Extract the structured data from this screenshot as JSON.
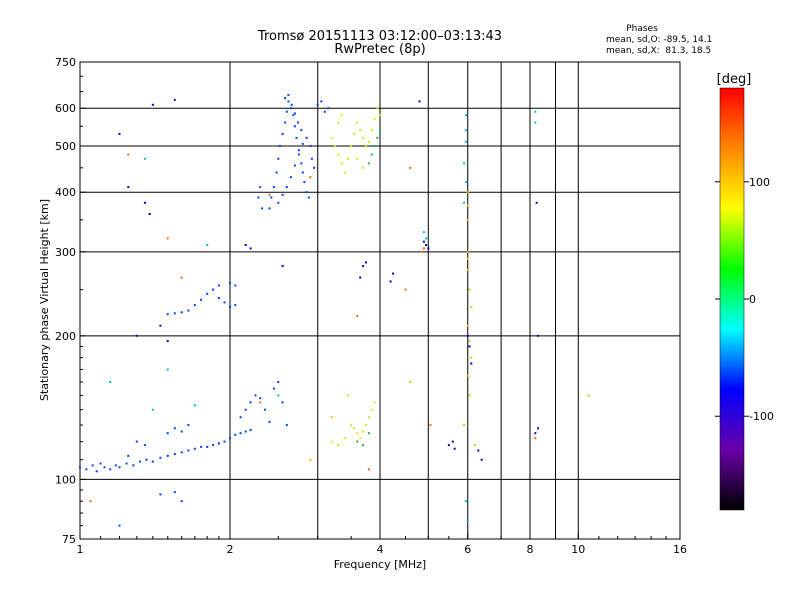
{
  "chart_data": {
    "type": "scatter",
    "title": "Tromsø 20151113 03:12:00–03:13:43",
    "subtitle": "RwPretec (8p)",
    "xlabel": "Frequency [MHz]",
    "ylabel": "Stationary phase Virtual Height [km]",
    "xscale": "log",
    "yscale": "log",
    "xlim": [
      1,
      16
    ],
    "ylim": [
      75,
      750
    ],
    "x_ticks": [
      1,
      2,
      4,
      6,
      8,
      10,
      16
    ],
    "y_ticks": [
      75,
      100,
      200,
      300,
      400,
      500,
      600,
      750
    ],
    "grid": true,
    "stats": {
      "title": "Phases",
      "line1": "mean, sd,O: -89.5, 14.1",
      "line2": "mean, sd,X:  81.3, 18.5"
    },
    "colorbar": {
      "label": "[deg]",
      "range": [
        -180,
        180
      ],
      "ticks": [
        100,
        0,
        -100
      ],
      "colors": [
        "#ff0000",
        "#ff8800",
        "#ffff00",
        "#00ff00",
        "#00ffff",
        "#0000ff",
        "#6a00aa",
        "#000000"
      ]
    },
    "series": [
      {
        "color": "#0040ff",
        "points": [
          [
            1.0,
            106
          ],
          [
            1.03,
            105
          ],
          [
            1.06,
            107
          ],
          [
            1.08,
            104
          ],
          [
            1.1,
            108
          ],
          [
            1.12,
            106
          ],
          [
            1.15,
            105
          ],
          [
            1.18,
            107
          ],
          [
            1.2,
            106
          ],
          [
            1.24,
            108
          ],
          [
            1.28,
            107
          ],
          [
            1.32,
            109
          ],
          [
            1.36,
            110
          ],
          [
            1.4,
            109
          ],
          [
            1.45,
            111
          ],
          [
            1.5,
            112
          ],
          [
            1.55,
            113
          ],
          [
            1.6,
            114
          ],
          [
            1.65,
            115
          ],
          [
            1.7,
            116
          ],
          [
            1.75,
            117
          ],
          [
            1.8,
            117
          ],
          [
            1.85,
            118
          ],
          [
            1.9,
            119
          ],
          [
            1.95,
            120
          ],
          [
            2.0,
            122
          ],
          [
            2.05,
            124
          ],
          [
            2.1,
            125
          ],
          [
            2.15,
            126
          ],
          [
            2.2,
            127
          ],
          [
            2.1,
            135
          ],
          [
            2.15,
            140
          ],
          [
            2.2,
            145
          ],
          [
            2.25,
            150
          ],
          [
            2.3,
            148
          ],
          [
            2.35,
            140
          ],
          [
            2.4,
            132
          ],
          [
            2.45,
            155
          ],
          [
            2.5,
            160
          ],
          [
            2.55,
            145
          ],
          [
            2.6,
            130
          ],
          [
            1.5,
            125
          ],
          [
            1.55,
            128
          ],
          [
            1.6,
            126
          ],
          [
            1.65,
            130
          ],
          [
            1.3,
            120
          ],
          [
            1.35,
            118
          ],
          [
            1.25,
            112
          ],
          [
            1.45,
            93
          ],
          [
            1.55,
            94
          ],
          [
            1.2,
            80
          ],
          [
            1.6,
            90
          ]
        ]
      },
      {
        "color": "#0040ff",
        "points": [
          [
            1.5,
            222
          ],
          [
            1.55,
            223
          ],
          [
            1.6,
            224
          ],
          [
            1.65,
            226
          ],
          [
            1.7,
            232
          ],
          [
            1.75,
            238
          ],
          [
            1.8,
            245
          ],
          [
            1.85,
            250
          ],
          [
            1.9,
            240
          ],
          [
            1.95,
            235
          ],
          [
            2.0,
            230
          ],
          [
            2.05,
            232
          ],
          [
            1.9,
            255
          ],
          [
            2.0,
            258
          ],
          [
            2.05,
            255
          ]
        ]
      },
      {
        "color": "#0040ff",
        "points": [
          [
            2.4,
            370
          ],
          [
            2.42,
            390
          ],
          [
            2.45,
            410
          ],
          [
            2.48,
            440
          ],
          [
            2.5,
            470
          ],
          [
            2.52,
            500
          ],
          [
            2.55,
            530
          ],
          [
            2.58,
            560
          ],
          [
            2.6,
            590
          ],
          [
            2.62,
            620
          ],
          [
            2.65,
            600
          ],
          [
            2.68,
            580
          ],
          [
            2.7,
            550
          ],
          [
            2.72,
            520
          ],
          [
            2.75,
            490
          ],
          [
            2.78,
            460
          ],
          [
            2.8,
            440
          ],
          [
            2.82,
            420
          ],
          [
            2.85,
            400
          ],
          [
            2.88,
            390
          ],
          [
            2.5,
            380
          ],
          [
            2.55,
            395
          ],
          [
            2.6,
            410
          ],
          [
            2.65,
            430
          ],
          [
            2.7,
            455
          ],
          [
            2.75,
            480
          ],
          [
            2.8,
            505
          ],
          [
            2.85,
            520
          ],
          [
            2.9,
            500
          ],
          [
            2.92,
            470
          ],
          [
            2.95,
            450
          ],
          [
            2.58,
            630
          ],
          [
            2.62,
            640
          ],
          [
            2.66,
            610
          ],
          [
            2.7,
            585
          ],
          [
            2.74,
            560
          ],
          [
            2.78,
            540
          ],
          [
            3.0,
            610
          ],
          [
            3.05,
            620
          ],
          [
            3.1,
            590
          ],
          [
            3.15,
            600
          ],
          [
            2.3,
            410
          ],
          [
            2.28,
            390
          ],
          [
            2.32,
            370
          ]
        ]
      },
      {
        "color": "#d4e800",
        "points": [
          [
            3.2,
            520
          ],
          [
            3.25,
            500
          ],
          [
            3.3,
            480
          ],
          [
            3.35,
            460
          ],
          [
            3.4,
            440
          ],
          [
            3.45,
            470
          ],
          [
            3.5,
            500
          ],
          [
            3.55,
            530
          ],
          [
            3.6,
            560
          ],
          [
            3.65,
            540
          ],
          [
            3.7,
            520
          ],
          [
            3.75,
            500
          ],
          [
            3.8,
            510
          ],
          [
            3.85,
            540
          ],
          [
            3.9,
            570
          ],
          [
            3.95,
            600
          ],
          [
            4.0,
            580
          ],
          [
            3.3,
            560
          ],
          [
            3.35,
            580
          ],
          [
            3.6,
            470
          ],
          [
            3.7,
            450
          ],
          [
            3.5,
            130
          ],
          [
            3.55,
            128
          ],
          [
            3.6,
            125
          ],
          [
            3.65,
            122
          ],
          [
            3.7,
            126
          ],
          [
            3.75,
            130
          ],
          [
            3.8,
            135
          ],
          [
            3.85,
            140
          ],
          [
            3.9,
            145
          ],
          [
            3.2,
            120
          ],
          [
            3.3,
            118
          ],
          [
            3.4,
            122
          ],
          [
            3.45,
            150
          ]
        ]
      },
      {
        "color": "#20b040",
        "points": [
          [
            3.85,
            480
          ],
          [
            3.9,
            500
          ],
          [
            3.95,
            520
          ],
          [
            4.0,
            540
          ],
          [
            3.8,
            460
          ],
          [
            3.6,
            120
          ],
          [
            3.7,
            118
          ],
          [
            3.8,
            125
          ]
        ]
      },
      {
        "color": "#ff6000",
        "points": [
          [
            1.25,
            480
          ],
          [
            1.6,
            265
          ],
          [
            2.4,
            395
          ],
          [
            2.9,
            430
          ],
          [
            3.6,
            220
          ],
          [
            4.85,
            300
          ],
          [
            4.9,
            305
          ],
          [
            4.6,
            450
          ],
          [
            4.5,
            250
          ],
          [
            5.05,
            130
          ],
          [
            8.2,
            122
          ],
          [
            3.8,
            105
          ],
          [
            2.3,
            145
          ],
          [
            1.05,
            90
          ],
          [
            1.5,
            320
          ]
        ]
      },
      {
        "color": "#f0c000",
        "points": [
          [
            6.0,
            400
          ],
          [
            6.0,
            375
          ],
          [
            6.0,
            350
          ],
          [
            6.0,
            300
          ],
          [
            6.0,
            290
          ],
          [
            6.0,
            275
          ],
          [
            6.05,
            250
          ],
          [
            6.1,
            230
          ],
          [
            6.0,
            210
          ],
          [
            6.05,
            195
          ],
          [
            6.1,
            180
          ],
          [
            6.0,
            165
          ],
          [
            6.05,
            150
          ],
          [
            5.9,
            130
          ],
          [
            6.2,
            118
          ],
          [
            10.5,
            150
          ],
          [
            3.2,
            135
          ],
          [
            2.9,
            110
          ],
          [
            4.6,
            160
          ]
        ]
      },
      {
        "color": "#00b8d0",
        "points": [
          [
            5.95,
            580
          ],
          [
            5.95,
            540
          ],
          [
            5.95,
            510
          ],
          [
            5.9,
            460
          ],
          [
            5.95,
            420
          ],
          [
            5.9,
            380
          ],
          [
            4.9,
            330
          ],
          [
            4.95,
            320
          ],
          [
            1.35,
            470
          ],
          [
            1.5,
            170
          ],
          [
            1.15,
            160
          ],
          [
            1.4,
            140
          ],
          [
            2.5,
            150
          ],
          [
            1.7,
            143
          ],
          [
            5.95,
            90
          ],
          [
            6.0,
            82
          ],
          [
            8.2,
            590
          ],
          [
            8.2,
            560
          ],
          [
            1.8,
            310
          ]
        ]
      },
      {
        "color": "#0000c8",
        "points": [
          [
            1.2,
            530
          ],
          [
            1.25,
            410
          ],
          [
            1.35,
            380
          ],
          [
            1.38,
            360
          ],
          [
            1.4,
            610
          ],
          [
            1.55,
            625
          ],
          [
            1.3,
            200
          ],
          [
            1.45,
            210
          ],
          [
            1.5,
            195
          ],
          [
            5.5,
            118
          ],
          [
            5.6,
            120
          ],
          [
            5.65,
            116
          ],
          [
            8.2,
            125
          ],
          [
            8.3,
            128
          ],
          [
            4.9,
            315
          ],
          [
            4.95,
            310
          ],
          [
            5.0,
            305
          ],
          [
            4.2,
            260
          ],
          [
            4.25,
            270
          ],
          [
            3.65,
            265
          ],
          [
            3.7,
            280
          ],
          [
            3.75,
            285
          ],
          [
            2.15,
            310
          ],
          [
            2.2,
            305
          ],
          [
            2.55,
            280
          ],
          [
            6.0,
            200
          ],
          [
            6.05,
            190
          ],
          [
            6.1,
            175
          ],
          [
            8.3,
            200
          ],
          [
            8.25,
            380
          ],
          [
            4.8,
            620
          ],
          [
            6.3,
            115
          ],
          [
            6.4,
            110
          ]
        ]
      }
    ]
  }
}
